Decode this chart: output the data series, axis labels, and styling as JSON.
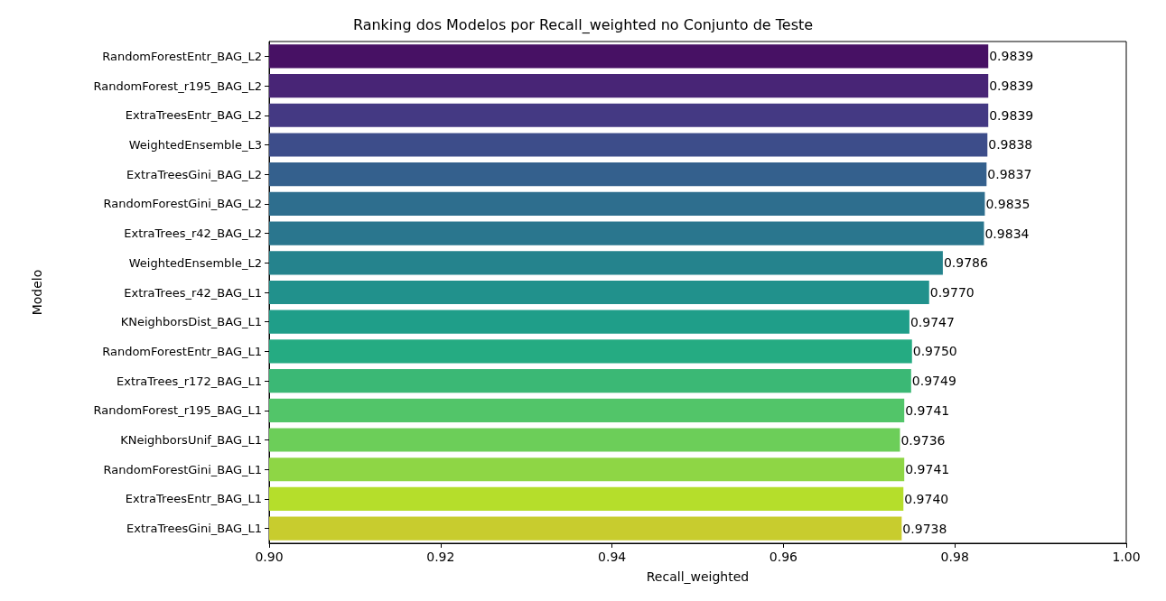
{
  "chart_data": {
    "type": "bar",
    "orientation": "horizontal",
    "title": "Ranking dos Modelos por Recall_weighted no Conjunto de Teste",
    "xlabel": "Recall_weighted",
    "ylabel": "Modelo",
    "categories": [
      "RandomForestEntr_BAG_L2",
      "RandomForest_r195_BAG_L2",
      "ExtraTreesEntr_BAG_L2",
      "WeightedEnsemble_L3",
      "ExtraTreesGini_BAG_L2",
      "RandomForestGini_BAG_L2",
      "ExtraTrees_r42_BAG_L2",
      "WeightedEnsemble_L2",
      "ExtraTrees_r42_BAG_L1",
      "KNeighborsDist_BAG_L1",
      "RandomForestEntr_BAG_L1",
      "ExtraTrees_r172_BAG_L1",
      "RandomForest_r195_BAG_L1",
      "KNeighborsUnif_BAG_L1",
      "RandomForestGini_BAG_L1",
      "ExtraTreesEntr_BAG_L1",
      "ExtraTreesGini_BAG_L1"
    ],
    "values": [
      0.9839,
      0.9839,
      0.9839,
      0.9838,
      0.9837,
      0.9835,
      0.9834,
      0.9786,
      0.977,
      0.9747,
      0.975,
      0.9749,
      0.9741,
      0.9736,
      0.9741,
      0.974,
      0.9738
    ],
    "value_labels": [
      "0.9839",
      "0.9839",
      "0.9839",
      "0.9838",
      "0.9837",
      "0.9835",
      "0.9834",
      "0.9786",
      "0.9770",
      "0.9747",
      "0.9750",
      "0.9749",
      "0.9741",
      "0.9736",
      "0.9741",
      "0.9740",
      "0.9738"
    ],
    "colors": [
      "#471164",
      "#482576",
      "#443983",
      "#3d4d8a",
      "#34608d",
      "#2e6e8e",
      "#2a768e",
      "#25838d",
      "#21918c",
      "#1f9e89",
      "#25ab82",
      "#3bb875",
      "#52c569",
      "#6cce59",
      "#8ed645",
      "#b5de2b",
      "#c8cc2e"
    ],
    "xlim": [
      0.9,
      1.0
    ],
    "xticks": [
      {
        "value": 0.9,
        "label": "0.90"
      },
      {
        "value": 0.92,
        "label": "0.92"
      },
      {
        "value": 0.94,
        "label": "0.94"
      },
      {
        "value": 0.96,
        "label": "0.96"
      },
      {
        "value": 0.98,
        "label": "0.98"
      },
      {
        "value": 1.0,
        "label": "1.00"
      }
    ],
    "grid": false
  }
}
